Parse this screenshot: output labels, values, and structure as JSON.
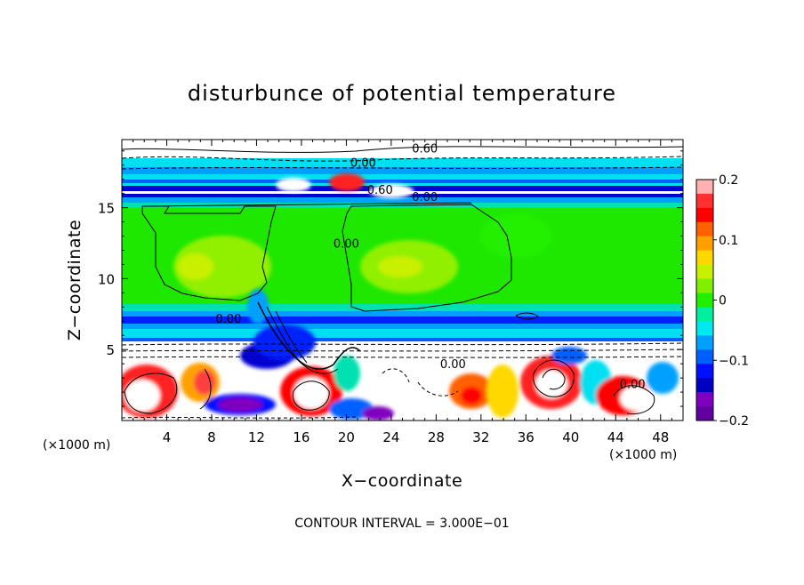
{
  "chart_data": {
    "type": "heatmap",
    "title": "disturbunce of potential temperature",
    "xlabel": "X−coordinate",
    "ylabel": "Z−coordinate",
    "x_unit_left": "(×1000 m)",
    "x_unit_right": "(×1000 m)",
    "xlim": [
      0,
      50
    ],
    "ylim": [
      0,
      19.8
    ],
    "x_ticks": [
      {
        "value": 4,
        "label": "4"
      },
      {
        "value": 8,
        "label": "8"
      },
      {
        "value": 12,
        "label": "12"
      },
      {
        "value": 16,
        "label": "16"
      },
      {
        "value": 20,
        "label": "20"
      },
      {
        "value": 24,
        "label": "24"
      },
      {
        "value": 28,
        "label": "28"
      },
      {
        "value": 32,
        "label": "32"
      },
      {
        "value": 36,
        "label": "36"
      },
      {
        "value": 40,
        "label": "40"
      },
      {
        "value": 44,
        "label": "44"
      },
      {
        "value": 48,
        "label": "48"
      }
    ],
    "y_ticks": [
      {
        "value": 5,
        "label": "5"
      },
      {
        "value": 10,
        "label": "10"
      },
      {
        "value": 15,
        "label": "15"
      }
    ],
    "colorbar": {
      "range": [
        -0.2,
        0.2
      ],
      "ticks": [
        {
          "value": 0.2,
          "label": "0.2"
        },
        {
          "value": 0.1,
          "label": "0.1"
        },
        {
          "value": 0,
          "label": "0"
        },
        {
          "value": -0.1,
          "label": "−0.1"
        },
        {
          "value": -0.2,
          "label": "−0.2"
        }
      ],
      "colors": [
        "#ffb0b0",
        "#ff3030",
        "#ff0000",
        "#ff6000",
        "#ffa000",
        "#ffd800",
        "#c8f000",
        "#80f000",
        "#20f000",
        "#00f0a0",
        "#00e8f0",
        "#00a0ff",
        "#0060ff",
        "#0010ff",
        "#0000c0",
        "#8000c0",
        "#6000a0"
      ]
    },
    "contour_labels": [
      {
        "x": 27,
        "y": 19.2,
        "text": "0.60"
      },
      {
        "x": 21.5,
        "y": 18.2,
        "text": "0.00"
      },
      {
        "x": 23,
        "y": 16.3,
        "text": "0.60"
      },
      {
        "x": 27,
        "y": 15.8,
        "text": "0.00"
      },
      {
        "x": 20,
        "y": 12.5,
        "text": "0.00"
      },
      {
        "x": 9.5,
        "y": 7.2,
        "text": "0.00"
      },
      {
        "x": 29.5,
        "y": 4.0,
        "text": "0.00"
      },
      {
        "x": 45.5,
        "y": 2.6,
        "text": "0.00"
      }
    ],
    "footer": "CONTOUR INTERVAL = 3.000E−01"
  }
}
